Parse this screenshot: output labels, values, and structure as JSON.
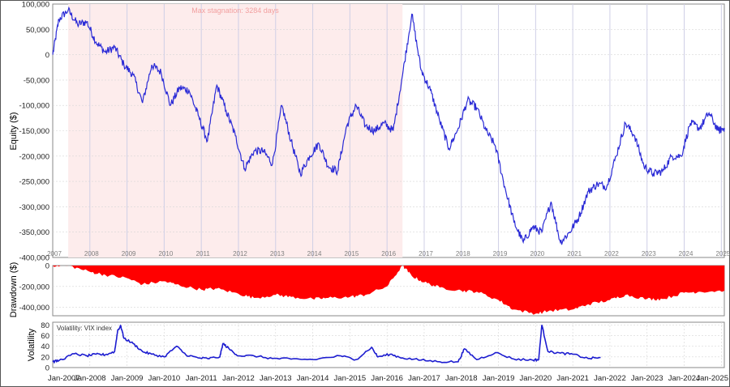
{
  "colors": {
    "equity_line": "#2a2ad6",
    "stagnation_fill": "#fdecec",
    "stagnation_text": "#f2a0a0",
    "drawdown_fill": "#ff0000",
    "vix_line": "#1c1cd0",
    "grid": "#d6d6d6",
    "year_line": "#cfcfe6",
    "axis_text": "#222222",
    "year_text": "#808080"
  },
  "chart_data": [
    {
      "type": "line",
      "panel": "equity",
      "ylabel": "Equity ($)",
      "ylim": [
        -400000,
        100000
      ],
      "y_ticks": [
        "100,000",
        "50,000",
        "0",
        "-50,000",
        "-100,000",
        "-150,000",
        "-200,000",
        "-250,000",
        "-300,000",
        "-350,000",
        "-400,000"
      ],
      "year_labels": [
        "2007",
        "2008",
        "2009",
        "2010",
        "2011",
        "2012",
        "2013",
        "2014",
        "2015",
        "2016",
        "2017",
        "2018",
        "2019",
        "2020",
        "2021",
        "2022",
        "2023",
        "2024",
        "2025"
      ],
      "annotation": "Max stagnation: 3284 days",
      "stagnation_period": [
        "2007-06",
        "2016-06"
      ],
      "series": [
        {
          "x": [
            "2007-01",
            "2007-03",
            "2007-06",
            "2007-09",
            "2007-12",
            "2008-03",
            "2008-06",
            "2008-09",
            "2008-12",
            "2009-03",
            "2009-06",
            "2009-09",
            "2009-12",
            "2010-03",
            "2010-06",
            "2010-09",
            "2010-12",
            "2011-03",
            "2011-06",
            "2011-09",
            "2011-12",
            "2012-03",
            "2012-06",
            "2012-09",
            "2012-12",
            "2013-03",
            "2013-06",
            "2013-09",
            "2013-12",
            "2014-03",
            "2014-06",
            "2014-09",
            "2014-12",
            "2015-03",
            "2015-06",
            "2015-09",
            "2015-12",
            "2016-03",
            "2016-06",
            "2016-09",
            "2016-12",
            "2017-03",
            "2017-06",
            "2017-09",
            "2017-12",
            "2018-03",
            "2018-06",
            "2018-09",
            "2018-12",
            "2019-03",
            "2019-06",
            "2019-09",
            "2019-12",
            "2020-03",
            "2020-06",
            "2020-09",
            "2020-12",
            "2021-03",
            "2021-06",
            "2021-09",
            "2021-12",
            "2022-03",
            "2022-06",
            "2022-09",
            "2022-12",
            "2023-03",
            "2023-06",
            "2023-09",
            "2023-12",
            "2024-03",
            "2024-06",
            "2024-09",
            "2024-12",
            "2025-02"
          ],
          "values": [
            0,
            70000,
            88000,
            60000,
            65000,
            25000,
            5000,
            15000,
            -20000,
            -40000,
            -95000,
            -20000,
            -35000,
            -100000,
            -65000,
            -70000,
            -120000,
            -170000,
            -60000,
            -110000,
            -160000,
            -225000,
            -190000,
            -190000,
            -215000,
            -100000,
            -170000,
            -235000,
            -200000,
            -175000,
            -220000,
            -230000,
            -140000,
            -100000,
            -140000,
            -150000,
            -135000,
            -150000,
            -40000,
            80000,
            -30000,
            -70000,
            -130000,
            -185000,
            -145000,
            -90000,
            -105000,
            -150000,
            -180000,
            -260000,
            -330000,
            -370000,
            -340000,
            -350000,
            -290000,
            -370000,
            -350000,
            -320000,
            -270000,
            -255000,
            -260000,
            -200000,
            -135000,
            -160000,
            -220000,
            -235000,
            -230000,
            -200000,
            -200000,
            -135000,
            -145000,
            -115000,
            -150000,
            -145000
          ]
        }
      ]
    },
    {
      "type": "area",
      "panel": "drawdown",
      "ylabel": "Drawdown ($)",
      "ylim": [
        -480000,
        0
      ],
      "y_ticks": [
        "0",
        "-200,000",
        "-400,000"
      ],
      "series": [
        {
          "x": [
            "2007-01",
            "2007-06",
            "2008-01",
            "2008-06",
            "2009-01",
            "2009-06",
            "2010-01",
            "2010-06",
            "2011-01",
            "2011-06",
            "2012-01",
            "2012-06",
            "2013-01",
            "2013-06",
            "2014-01",
            "2014-06",
            "2015-01",
            "2015-06",
            "2016-01",
            "2016-06",
            "2016-09",
            "2017-01",
            "2017-06",
            "2018-01",
            "2018-06",
            "2019-01",
            "2019-06",
            "2020-01",
            "2020-06",
            "2021-01",
            "2021-06",
            "2022-01",
            "2022-06",
            "2023-01",
            "2023-06",
            "2024-01",
            "2024-06",
            "2025-02"
          ],
          "values": [
            0,
            0,
            -60000,
            -90000,
            -120000,
            -180000,
            -150000,
            -190000,
            -230000,
            -220000,
            -270000,
            -310000,
            -280000,
            -300000,
            -320000,
            -310000,
            -300000,
            -280000,
            -200000,
            0,
            -100000,
            -160000,
            -210000,
            -240000,
            -250000,
            -330000,
            -420000,
            -460000,
            -430000,
            -420000,
            -370000,
            -330000,
            -280000,
            -320000,
            -320000,
            -260000,
            -250000,
            -240000
          ]
        }
      ]
    },
    {
      "type": "line",
      "panel": "volatility",
      "ylabel": "Volatility",
      "legend": "Volatility: VIX index",
      "ylim": [
        0,
        85
      ],
      "y_ticks": [
        "80",
        "60",
        "40",
        "20",
        "0"
      ],
      "x_ticks": [
        "Jan-2007",
        "Jan-2008",
        "Jan-2009",
        "Jan-2010",
        "Jan-2011",
        "Jan-2012",
        "Jan-2013",
        "Jan-2014",
        "Jan-2015",
        "Jan-2016",
        "Jan-2017",
        "Jan-2018",
        "Jan-2019",
        "Jan-2020",
        "Jan-2021",
        "Jan-2022",
        "Jan-2023",
        "Jan-2024",
        "Jan-2025"
      ],
      "series": [
        {
          "x": [
            "2007-01",
            "2007-03",
            "2007-08",
            "2007-12",
            "2008-03",
            "2008-06",
            "2008-09",
            "2008-10",
            "2008-11",
            "2008-12",
            "2009-03",
            "2009-06",
            "2009-09",
            "2010-01",
            "2010-05",
            "2010-08",
            "2010-12",
            "2011-03",
            "2011-07",
            "2011-08",
            "2011-10",
            "2012-01",
            "2012-06",
            "2012-12",
            "2013-06",
            "2014-01",
            "2014-10",
            "2015-03",
            "2015-08",
            "2015-10",
            "2016-02",
            "2016-06",
            "2016-12",
            "2017-06",
            "2017-12",
            "2018-02",
            "2018-06",
            "2018-12",
            "2019-06",
            "2019-12",
            "2020-02",
            "2020-03",
            "2020-05",
            "2020-09",
            "2021-01",
            "2021-06",
            "2021-10"
          ],
          "values": [
            11,
            13,
            26,
            22,
            25,
            24,
            30,
            70,
            78,
            55,
            45,
            30,
            25,
            20,
            40,
            24,
            18,
            17,
            20,
            45,
            35,
            22,
            22,
            17,
            16,
            15,
            22,
            15,
            38,
            20,
            25,
            18,
            14,
            11,
            11,
            35,
            15,
            28,
            16,
            14,
            15,
            80,
            30,
            27,
            25,
            17,
            19
          ]
        }
      ]
    }
  ]
}
